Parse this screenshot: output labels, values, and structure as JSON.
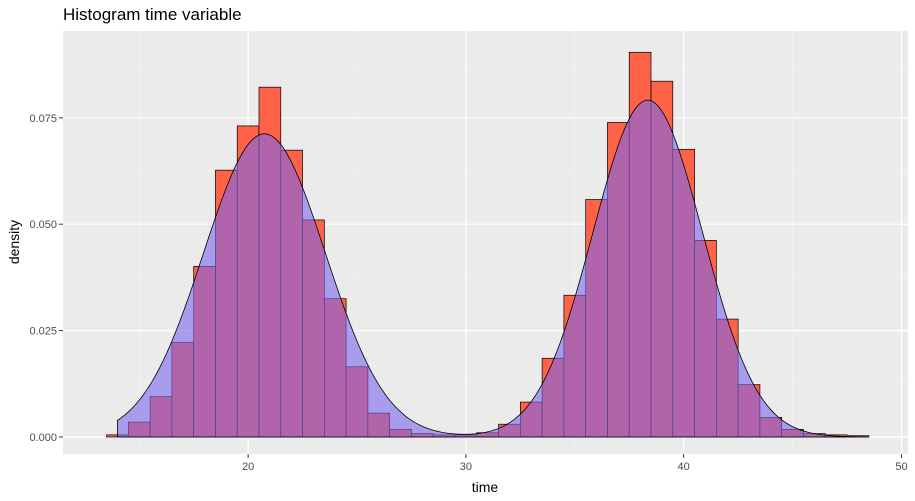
{
  "chart_data": {
    "type": "bar",
    "title": "Histogram time variable",
    "xlabel": "time",
    "ylabel": "density",
    "xlim": [
      11.5,
      50.3
    ],
    "ylim": [
      -0.004,
      0.0954
    ],
    "x_ticks": [
      20,
      30,
      40,
      50
    ],
    "y_ticks": [
      0.0,
      0.025,
      0.05,
      0.075
    ],
    "x_tick_labels": [
      "20",
      "30",
      "40",
      "50"
    ],
    "y_tick_labels": [
      "0.000",
      "0.025",
      "0.050",
      "0.075"
    ],
    "bin_width": 1.0,
    "grid": true,
    "colors": {
      "panel": "#ebebeb",
      "grid_major": "#ffffff",
      "grid_minor": "#f5f5f5",
      "histogram_fill": "#ff6347",
      "curve_fill": "#7b68ee",
      "curve_alpha": 0.6,
      "outline": "#000000"
    },
    "series": [
      {
        "name": "histogram",
        "bins_start": [
          13.5,
          14.5,
          15.5,
          16.5,
          17.5,
          18.5,
          19.5,
          20.5,
          21.5,
          22.5,
          23.5,
          24.5,
          25.5,
          26.5,
          27.5,
          28.5,
          29.5,
          30.5,
          31.5,
          32.5,
          33.5,
          34.5,
          35.5,
          36.5,
          37.5,
          38.5,
          39.5,
          40.5,
          41.5,
          42.5,
          43.5,
          44.5,
          45.5,
          46.5,
          47.5
        ],
        "values": [
          0.0005,
          0.0035,
          0.0095,
          0.0222,
          0.0401,
          0.0627,
          0.0731,
          0.0822,
          0.0674,
          0.051,
          0.0325,
          0.0165,
          0.0056,
          0.0018,
          0.0008,
          0.0005,
          0.0005,
          0.001,
          0.003,
          0.0082,
          0.0185,
          0.0333,
          0.0558,
          0.0739,
          0.0904,
          0.0836,
          0.0676,
          0.0462,
          0.0277,
          0.0123,
          0.0046,
          0.0018,
          0.0008,
          0.0005,
          0.0003
        ]
      },
      {
        "name": "density-curve",
        "x_range": [
          14,
          48.5
        ],
        "components": [
          {
            "weight": 0.5,
            "mean": 20.75,
            "sd": 2.8
          },
          {
            "weight": 0.5,
            "mean": 38.35,
            "sd": 2.52
          }
        ]
      }
    ]
  }
}
